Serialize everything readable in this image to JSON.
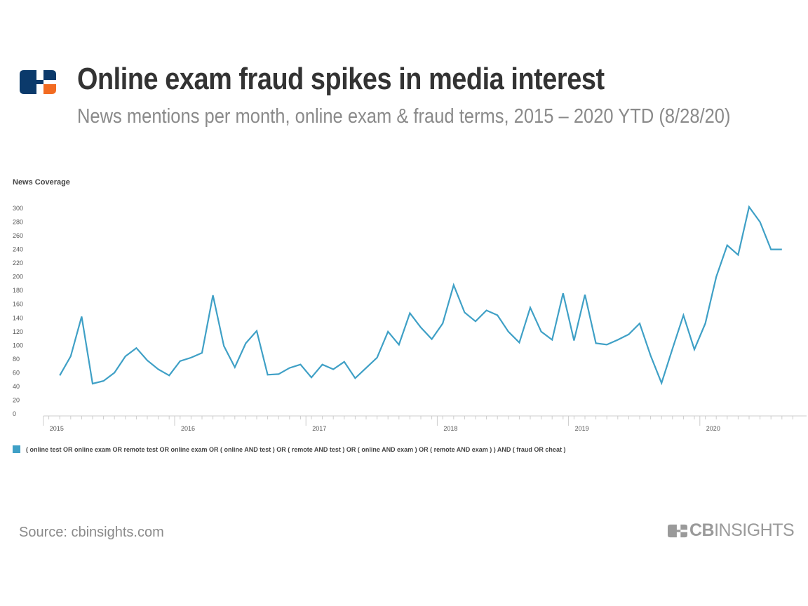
{
  "brand": {
    "accent_blue": "#0b3a6b",
    "accent_orange": "#f26b21",
    "line_color": "#3fa0c6",
    "wordmark_bold": "CB",
    "wordmark_light": "INSIGHTS"
  },
  "header": {
    "title": "Online exam fraud spikes in media interest",
    "subtitle": "News mentions per month, online exam & fraud terms, 2015 – 2020 YTD (8/28/20)"
  },
  "footer": {
    "source": "Source: cbinsights.com"
  },
  "chart_data": {
    "type": "line",
    "title": "Online exam fraud spikes in media interest",
    "subtitle": "News mentions per month, online exam & fraud terms, 2015 – 2020 YTD (8/28/20)",
    "ylabel": "News Coverage",
    "xlabel": "",
    "ylim": [
      0,
      300
    ],
    "yticks": [
      0,
      20,
      40,
      60,
      80,
      100,
      120,
      140,
      160,
      180,
      200,
      220,
      240,
      260,
      280,
      300
    ],
    "xticks": [
      "2015",
      "2016",
      "2017",
      "2018",
      "2019",
      "2020"
    ],
    "grid": false,
    "legend_position": "bottom-left",
    "series": [
      {
        "name": "( online test OR online exam OR remote test OR online exam OR ( online AND test ) OR ( remote AND test ) OR ( online AND exam ) OR ( remote AND exam ) ) AND ( fraud OR cheat )",
        "x": [
          "2015-02",
          "2015-03",
          "2015-04",
          "2015-05",
          "2015-06",
          "2015-07",
          "2015-08",
          "2015-09",
          "2015-10",
          "2015-11",
          "2015-12",
          "2016-01",
          "2016-02",
          "2016-03",
          "2016-04",
          "2016-05",
          "2016-06",
          "2016-07",
          "2016-08",
          "2016-09",
          "2016-10",
          "2016-11",
          "2016-12",
          "2017-01",
          "2017-02",
          "2017-03",
          "2017-04",
          "2017-05",
          "2017-06",
          "2017-07",
          "2017-08",
          "2017-09",
          "2017-10",
          "2017-11",
          "2017-12",
          "2018-01",
          "2018-02",
          "2018-03",
          "2018-04",
          "2018-05",
          "2018-06",
          "2018-07",
          "2018-08",
          "2018-09",
          "2018-10",
          "2018-11",
          "2018-12",
          "2019-01",
          "2019-02",
          "2019-03",
          "2019-04",
          "2019-05",
          "2019-06",
          "2019-07",
          "2019-08",
          "2019-09",
          "2019-10",
          "2019-11",
          "2019-12",
          "2020-01",
          "2020-02",
          "2020-03",
          "2020-04",
          "2020-05",
          "2020-06",
          "2020-07",
          "2020-08"
        ],
        "values": [
          56,
          84,
          142,
          44,
          48,
          60,
          84,
          96,
          78,
          65,
          56,
          77,
          82,
          89,
          173,
          99,
          68,
          103,
          121,
          57,
          58,
          67,
          72,
          53,
          72,
          65,
          76,
          52,
          67,
          82,
          120,
          101,
          147,
          126,
          109,
          132,
          188,
          148,
          135,
          151,
          144,
          120,
          104,
          155,
          120,
          108,
          176,
          107,
          174,
          103,
          101,
          108,
          116,
          132,
          85,
          45,
          95,
          144,
          94,
          132,
          200,
          246,
          232,
          302,
          280,
          240,
          240
        ]
      }
    ]
  }
}
